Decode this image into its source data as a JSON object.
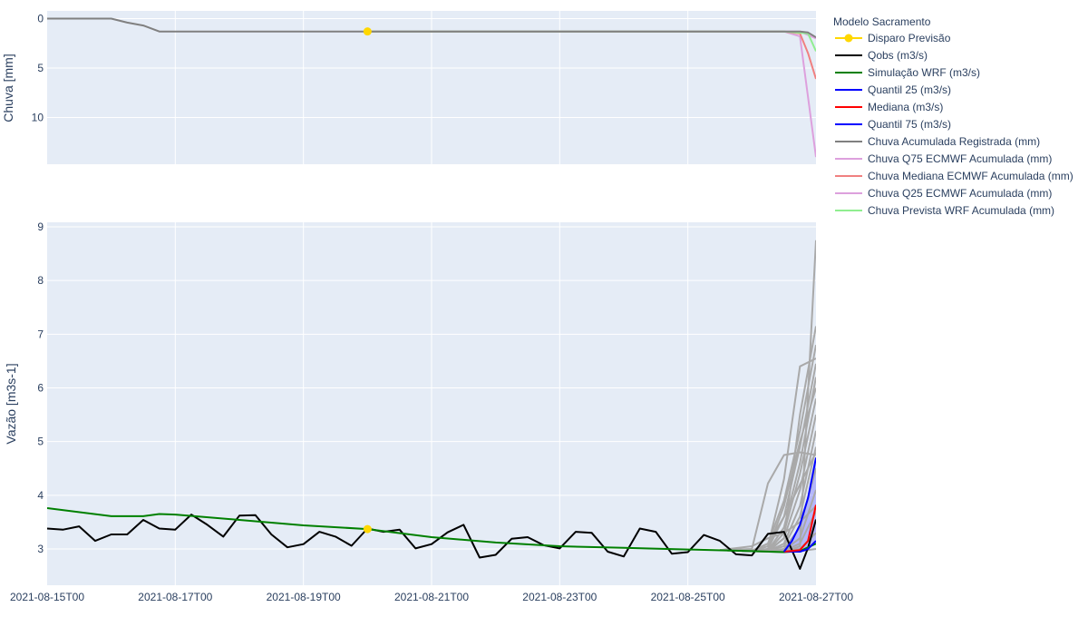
{
  "chart_data": [
    {
      "type": "line",
      "ylabel": "Chuva [mm]",
      "yaxis_reversed": true,
      "ylim": [
        0,
        14.5
      ],
      "yticks": [
        0,
        5,
        10
      ],
      "xlim": [
        "2021-08-15T00",
        "2021-08-27T00"
      ],
      "grid": true,
      "series": [
        {
          "name": "Chuva Acumulada Registrada (mm)",
          "color": "#808080",
          "x": [
            "2021-08-15T00",
            "2021-08-16T00",
            "2021-08-16T06",
            "2021-08-16T12",
            "2021-08-16T18",
            "2021-08-20T00",
            "2021-08-26T12",
            "2021-08-26T18",
            "2021-08-26T21",
            "2021-08-27T00"
          ],
          "y": [
            0,
            0,
            0.4,
            0.7,
            1.3,
            1.3,
            1.3,
            1.3,
            1.4,
            1.9
          ]
        },
        {
          "name": "Chuva Q75 ECMWF Acumulada (mm)",
          "color": "#dda0dd",
          "x": [
            "2021-08-20T00",
            "2021-08-26T12",
            "2021-08-26T18",
            "2021-08-27T00"
          ],
          "y": [
            1.3,
            1.3,
            1.8,
            14.0
          ]
        },
        {
          "name": "Chuva Mediana ECMWF Acumulada (mm)",
          "color": "#f08080",
          "x": [
            "2021-08-20T00",
            "2021-08-26T12",
            "2021-08-26T18",
            "2021-08-26T21",
            "2021-08-27T00"
          ],
          "y": [
            1.3,
            1.3,
            1.5,
            3.5,
            6.1
          ]
        },
        {
          "name": "Chuva Q25 ECMWF Acumulada (mm)",
          "color": "#dda0dd",
          "x": [
            "2021-08-20T00",
            "2021-08-26T18",
            "2021-08-27T00"
          ],
          "y": [
            1.3,
            1.3,
            2.0
          ]
        },
        {
          "name": "Chuva Prevista WRF Acumulada (mm)",
          "color": "#90ee90",
          "x": [
            "2021-08-20T00",
            "2021-08-26T12",
            "2021-08-26T21",
            "2021-08-27T00"
          ],
          "y": [
            1.3,
            1.3,
            1.5,
            3.3
          ]
        },
        {
          "name": "Disparo Previsão",
          "color": "#ffd700",
          "marker": true,
          "x": [
            "2021-08-20T00"
          ],
          "y": [
            1.3
          ]
        }
      ]
    },
    {
      "type": "line",
      "ylabel": "Vazão [m3s-1]",
      "ylim": [
        2.35,
        9.1
      ],
      "yticks": [
        3,
        4,
        5,
        6,
        7,
        8,
        9
      ],
      "xlim": [
        "2021-08-15T00",
        "2021-08-27T00"
      ],
      "xticks": [
        "2021-08-15T00",
        "2021-08-17T00",
        "2021-08-19T00",
        "2021-08-21T00",
        "2021-08-23T00",
        "2021-08-25T00",
        "2021-08-27T00"
      ],
      "grid": true,
      "series": [
        {
          "name": "Qobs (m3/s)",
          "color": "#000000",
          "x": [
            "2021-08-15T00",
            "2021-08-15T06",
            "2021-08-15T12",
            "2021-08-15T18",
            "2021-08-16T00",
            "2021-08-16T06",
            "2021-08-16T12",
            "2021-08-16T18",
            "2021-08-17T00",
            "2021-08-17T06",
            "2021-08-17T12",
            "2021-08-17T18",
            "2021-08-18T00",
            "2021-08-18T06",
            "2021-08-18T12",
            "2021-08-18T18",
            "2021-08-19T00",
            "2021-08-19T06",
            "2021-08-19T12",
            "2021-08-19T18",
            "2021-08-20T00",
            "2021-08-20T06",
            "2021-08-20T12",
            "2021-08-20T18",
            "2021-08-21T00",
            "2021-08-21T06",
            "2021-08-21T12",
            "2021-08-21T18",
            "2021-08-22T00",
            "2021-08-22T06",
            "2021-08-22T12",
            "2021-08-22T18",
            "2021-08-23T00",
            "2021-08-23T06",
            "2021-08-23T12",
            "2021-08-23T18",
            "2021-08-24T00",
            "2021-08-24T06",
            "2021-08-24T12",
            "2021-08-24T18",
            "2021-08-25T00",
            "2021-08-25T06",
            "2021-08-25T12",
            "2021-08-25T18",
            "2021-08-26T00",
            "2021-08-26T06",
            "2021-08-26T12",
            "2021-08-26T18",
            "2021-08-26T21",
            "2021-08-27T00"
          ],
          "y": [
            3.38,
            3.36,
            3.42,
            3.15,
            3.27,
            3.27,
            3.54,
            3.38,
            3.36,
            3.64,
            3.45,
            3.23,
            3.62,
            3.63,
            3.27,
            3.03,
            3.09,
            3.32,
            3.23,
            3.06,
            3.38,
            3.32,
            3.36,
            3.01,
            3.09,
            3.31,
            3.45,
            2.84,
            2.89,
            3.19,
            3.22,
            3.07,
            3.01,
            3.32,
            3.3,
            2.95,
            2.86,
            3.38,
            3.32,
            2.91,
            2.94,
            3.26,
            3.15,
            2.9,
            2.88,
            3.28,
            3.32,
            2.63,
            3.02,
            3.55
          ]
        },
        {
          "name": "Simulação WRF (m3/s)",
          "color": "#008000",
          "x": [
            "2021-08-15T00",
            "2021-08-16T00",
            "2021-08-16T12",
            "2021-08-16T18",
            "2021-08-17T00",
            "2021-08-18T00",
            "2021-08-19T00",
            "2021-08-20T00",
            "2021-08-21T00",
            "2021-08-22T00",
            "2021-08-23T00",
            "2021-08-24T00",
            "2021-08-25T00",
            "2021-08-26T00",
            "2021-08-26T12",
            "2021-08-26T18",
            "2021-08-27T00"
          ],
          "y": [
            3.76,
            3.61,
            3.61,
            3.65,
            3.64,
            3.54,
            3.44,
            3.37,
            3.22,
            3.12,
            3.05,
            3.02,
            2.99,
            2.96,
            2.94,
            2.96,
            3.1
          ]
        },
        {
          "name": "Quantil 25 (m3/s)",
          "color": "#0000ff",
          "x": [
            "2021-08-26T12",
            "2021-08-26T18",
            "2021-08-26T21",
            "2021-08-27T00"
          ],
          "y": [
            2.95,
            2.95,
            3.0,
            3.15
          ]
        },
        {
          "name": "Mediana (m3/s)",
          "color": "#ff0000",
          "x": [
            "2021-08-26T12",
            "2021-08-26T18",
            "2021-08-26T21",
            "2021-08-27T00"
          ],
          "y": [
            2.95,
            2.98,
            3.15,
            3.82
          ]
        },
        {
          "name": "Quantil 75 (m3/s)",
          "color": "#0000ff",
          "x": [
            "2021-08-26T12",
            "2021-08-26T15",
            "2021-08-26T18",
            "2021-08-26T21",
            "2021-08-27T00"
          ],
          "y": [
            2.95,
            3.15,
            3.45,
            3.95,
            4.7
          ]
        },
        {
          "name": "Disparo Previsão",
          "color": "#ffd700",
          "marker": true,
          "x": [
            "2021-08-20T00"
          ],
          "y": [
            3.37
          ]
        }
      ],
      "ensemble": {
        "color": "#a9a9a9",
        "band_color": "rgba(120,120,255,0.45)",
        "x": [
          "2021-08-25T12",
          "2021-08-26T00",
          "2021-08-26T06",
          "2021-08-26T12",
          "2021-08-26T18",
          "2021-08-27T00"
        ],
        "members": [
          [
            2.98,
            2.96,
            2.95,
            2.94,
            3.05,
            8.75
          ],
          [
            2.98,
            2.96,
            2.95,
            3.2,
            5.5,
            7.15
          ],
          [
            2.98,
            3.0,
            4.22,
            4.75,
            4.8,
            4.75
          ],
          [
            2.98,
            2.97,
            3.1,
            3.9,
            5.2,
            6.8
          ],
          [
            2.98,
            2.96,
            3.0,
            3.6,
            4.9,
            6.45
          ],
          [
            2.98,
            2.96,
            3.05,
            4.3,
            6.4,
            6.55
          ],
          [
            2.98,
            2.96,
            2.97,
            3.4,
            4.6,
            6.2
          ],
          [
            2.98,
            2.96,
            3.0,
            3.8,
            5.0,
            6.0
          ],
          [
            2.98,
            2.96,
            2.96,
            3.3,
            4.4,
            5.8
          ],
          [
            2.98,
            2.96,
            2.96,
            3.2,
            4.1,
            5.5
          ],
          [
            2.98,
            2.96,
            2.96,
            3.1,
            3.8,
            5.2
          ],
          [
            2.98,
            2.96,
            2.96,
            3.05,
            3.6,
            4.9
          ],
          [
            2.98,
            2.96,
            2.96,
            3.0,
            3.4,
            4.5
          ],
          [
            2.98,
            2.96,
            2.96,
            2.98,
            3.2,
            4.1
          ],
          [
            2.98,
            2.96,
            2.96,
            2.97,
            3.1,
            3.7
          ],
          [
            2.98,
            2.96,
            2.96,
            2.96,
            3.0,
            3.3
          ],
          [
            2.98,
            2.96,
            2.95,
            2.95,
            2.96,
            3.0
          ],
          [
            2.98,
            3.05,
            3.2,
            3.3,
            3.5,
            3.8
          ],
          [
            2.98,
            2.96,
            3.1,
            3.6,
            4.2,
            4.8
          ]
        ]
      }
    }
  ],
  "legend": {
    "title": "Modelo Sacramento",
    "placement": "right",
    "items": [
      {
        "label": "Disparo Previsão",
        "color": "#ffd700",
        "marker": true
      },
      {
        "label": "Qobs (m3/s)",
        "color": "#000000"
      },
      {
        "label": "Simulação WRF (m3/s)",
        "color": "#008000"
      },
      {
        "label": "Quantil 25 (m3/s)",
        "color": "#0000ff"
      },
      {
        "label": "Mediana (m3/s)",
        "color": "#ff0000"
      },
      {
        "label": "Quantil 75 (m3/s)",
        "color": "#0000ff"
      },
      {
        "label": "Chuva Acumulada Registrada (mm)",
        "color": "#808080"
      },
      {
        "label": "Chuva Q75 ECMWF Acumulada (mm)",
        "color": "#dda0dd"
      },
      {
        "label": "Chuva Mediana ECMWF Acumulada (mm)",
        "color": "#f08080"
      },
      {
        "label": "Chuva Q25 ECMWF Acumulada (mm)",
        "color": "#dda0dd"
      },
      {
        "label": "Chuva Prevista WRF Acumulada (mm)",
        "color": "#90ee90"
      }
    ]
  },
  "colors": {
    "plot_bg": "#e5ecf6",
    "grid": "#ffffff",
    "axis_text": "#2a3f5f"
  }
}
